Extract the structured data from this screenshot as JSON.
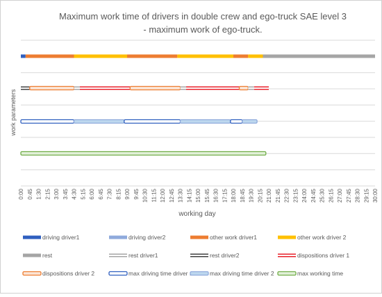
{
  "chart_data": {
    "type": "timeline",
    "title_line1": "Maximum work time of drivers in double crew and ego-truck SAE level 3",
    "title_line2": "- maximum work of ego-truck.",
    "xlabel": "working day",
    "ylabel": "work parameters",
    "x_unit": "hours",
    "xlim": [
      0,
      30
    ],
    "grid": true,
    "legend_position": "bottom",
    "x_ticks": [
      "0:00",
      "0:45",
      "1:30",
      "2:15",
      "3:00",
      "3:45",
      "4:30",
      "5:15",
      "6:00",
      "6:45",
      "7:30",
      "8:15",
      "9:00",
      "9:45",
      "10:30",
      "11:15",
      "12:00",
      "12:45",
      "13:30",
      "14:15",
      "15:00",
      "15:45",
      "16:30",
      "17:15",
      "18:00",
      "18:45",
      "19:30",
      "20:15",
      "21:00",
      "21:45",
      "22:30",
      "23:15",
      "24:00",
      "24:45",
      "25:30",
      "26:15",
      "27:00",
      "27:45",
      "28:30",
      "29:15",
      "30:00"
    ],
    "colors": {
      "driving1": "#2f5fbf",
      "driving2": "#8faadc",
      "other1": "#ed7d31",
      "other2": "#ffc000",
      "rest": "#a5a5a5",
      "dispositions": "#e8202a",
      "max_driving_outline": "#2f5fbf",
      "max_driving_fill_1": "#ffffff",
      "max_driving_fill_2": "#bdd7ee",
      "max_working": "#70ad47"
    },
    "rows": [
      {
        "segments": [
          {
            "start": 0,
            "end": 0.4,
            "series": "driving driver1"
          },
          {
            "start": 0.4,
            "end": 4.5,
            "series": "other work driver1"
          },
          {
            "start": 4.5,
            "end": 9.0,
            "series": "other work driver 2"
          },
          {
            "start": 9.0,
            "end": 13.25,
            "series": "other work driver1"
          },
          {
            "start": 13.25,
            "end": 18.0,
            "series": "other work driver 2"
          },
          {
            "start": 18.0,
            "end": 19.25,
            "series": "other work driver1"
          },
          {
            "start": 19.25,
            "end": 20.5,
            "series": "other work driver 2"
          },
          {
            "start": 20.5,
            "end": 30.0,
            "series": "rest"
          }
        ]
      },
      {
        "segments": [
          {
            "start": 0,
            "end": 0.75,
            "series": "rest driver2"
          },
          {
            "start": 0.75,
            "end": 4.5,
            "series": "dispositions driver 2"
          },
          {
            "start": 4.5,
            "end": 5.0,
            "series": "rest driver1"
          },
          {
            "start": 5.0,
            "end": 9.25,
            "series": "dispositions driver 1"
          },
          {
            "start": 9.25,
            "end": 13.5,
            "series": "dispositions driver 2"
          },
          {
            "start": 13.5,
            "end": 14.0,
            "series": "rest driver1"
          },
          {
            "start": 14.0,
            "end": 18.5,
            "series": "dispositions driver 1"
          },
          {
            "start": 18.5,
            "end": 19.25,
            "series": "dispositions driver 2"
          },
          {
            "start": 19.25,
            "end": 19.75,
            "series": "rest driver1"
          },
          {
            "start": 19.75,
            "end": 21.0,
            "series": "dispositions driver 1"
          }
        ]
      },
      {
        "segments": [
          {
            "start": 0,
            "end": 4.5,
            "series": "max driving time driver 1"
          },
          {
            "start": 4.5,
            "end": 8.75,
            "series": "max driving time driver 2"
          },
          {
            "start": 8.75,
            "end": 13.5,
            "series": "max driving time driver 1"
          },
          {
            "start": 13.5,
            "end": 17.75,
            "series": "max driving time driver 2"
          },
          {
            "start": 17.75,
            "end": 18.75,
            "series": "max driving time driver 1"
          },
          {
            "start": 18.75,
            "end": 20.0,
            "series": "max driving time driver 2"
          }
        ]
      },
      {
        "segments": [
          {
            "start": 0,
            "end": 20.75,
            "series": "max working time"
          }
        ]
      }
    ],
    "legend": [
      {
        "label": "driving driver1",
        "style": "solid",
        "color": "#2f5fbf"
      },
      {
        "label": "driving driver2",
        "style": "solid",
        "color": "#8faadc"
      },
      {
        "label": "other work driver1",
        "style": "solid",
        "color": "#ed7d31"
      },
      {
        "label": "other work driver 2",
        "style": "solid",
        "color": "#ffc000"
      },
      {
        "label": "rest",
        "style": "solid",
        "color": "#a5a5a5"
      },
      {
        "label": "rest driver1",
        "style": "double",
        "color": "#a5a5a5"
      },
      {
        "label": "rest driver2",
        "style": "double",
        "color": "#404040"
      },
      {
        "label": "dispositions driver 1",
        "style": "double",
        "color": "#e8202a"
      },
      {
        "label": "dispositions driver 2",
        "style": "outlined",
        "color": "#ed7d31"
      },
      {
        "label": "max driving time driver 1",
        "style": "outlined",
        "color": "#2f5fbf"
      },
      {
        "label": "max driving time driver 2",
        "style": "outlined",
        "color": "#8faadc"
      },
      {
        "label": "max working time",
        "style": "outlined",
        "color": "#70ad47"
      }
    ]
  }
}
